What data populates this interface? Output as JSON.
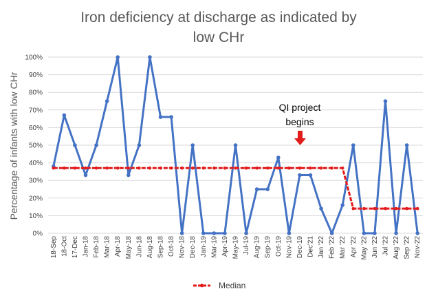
{
  "chart_data": {
    "type": "line",
    "title": "Iron deficiency at discharge as indicated by low CHr",
    "title_lines": [
      "Iron deficiency at discharge as indicated by",
      "low CHr"
    ],
    "xlabel": "",
    "ylabel": "Percentage of infants with low CHr",
    "ylim": [
      0,
      100
    ],
    "yticks": [
      "0%",
      "10%",
      "20%",
      "30%",
      "40%",
      "50%",
      "60%",
      "70%",
      "80%",
      "90%",
      "100%"
    ],
    "grid": true,
    "legend_position": "bottom",
    "categories": [
      "18-Sep",
      "18-Oct",
      "17-Dec",
      "Jan-18",
      "Feb-18",
      "Mar-18",
      "Apr-18",
      "May-18",
      "Jun-18",
      "Aug-18",
      "Sep-18",
      "Oct-18",
      "Nov-18",
      "Dec-18",
      "Jan-19",
      "Mar-19",
      "Apr-19",
      "May-19",
      "Jul-19",
      "Aug-19",
      "Sep-19",
      "Oct-19",
      "Nov-19",
      "Dec-19",
      "Dec'21",
      "Jan '22",
      "Feb '22",
      "Mar '22",
      "Apr '22",
      "May '22",
      "Jun '22",
      "Jul '22",
      "Aug '22",
      "Sep '22",
      "Nov-22"
    ],
    "series": [
      {
        "name": "",
        "color": "#4472c4",
        "values": [
          38,
          67,
          50,
          33,
          50,
          75,
          100,
          33,
          50,
          100,
          66,
          66,
          0,
          50,
          0,
          0,
          0,
          50,
          0,
          25,
          25,
          43,
          0,
          33,
          33,
          14,
          0,
          16,
          50,
          0,
          0,
          75,
          0,
          50,
          0
        ]
      },
      {
        "name": "Median",
        "color": "#e31b1b",
        "values": [
          37,
          37,
          37,
          37,
          37,
          37,
          37,
          37,
          37,
          37,
          37,
          37,
          37,
          37,
          37,
          37,
          37,
          37,
          37,
          37,
          37,
          37,
          37,
          37,
          37,
          37,
          37,
          37,
          14,
          14,
          14,
          14,
          14,
          14,
          14
        ]
      }
    ],
    "annotation": {
      "lines": [
        "QI project",
        "begins"
      ],
      "at_category": "Dec-19",
      "arrow_color": "#e31b1b"
    }
  }
}
